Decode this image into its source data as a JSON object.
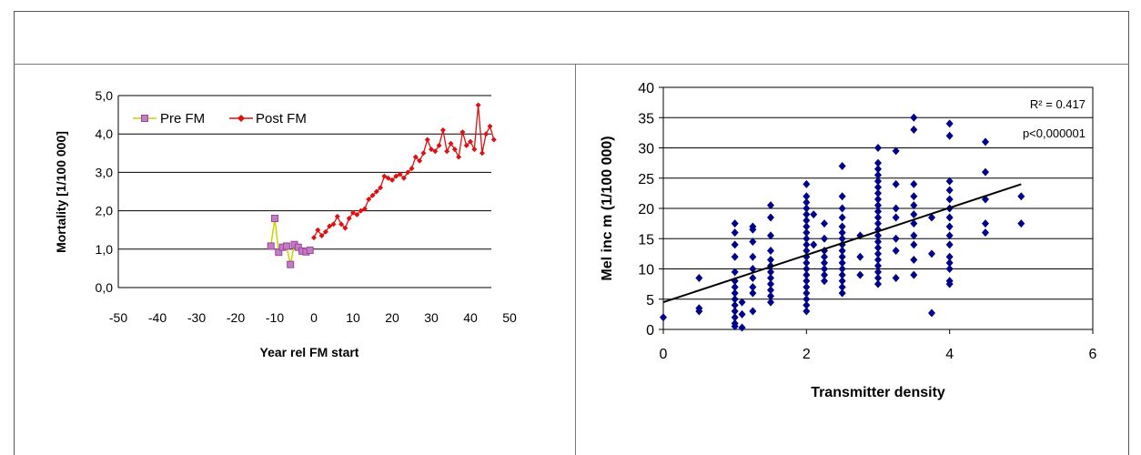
{
  "colors": {
    "pre_line": "#c8d400",
    "pre_marker": "#c080c0",
    "pre_marker_edge": "#a040a0",
    "post": "#dd1111",
    "scatter": "#00008b",
    "trend": "#000000",
    "grid": "#000000",
    "border": "#555555"
  },
  "chart_data": [
    {
      "type": "line",
      "xlabel": "Year rel FM start",
      "ylabel": "Mortality  [1/100 000]",
      "xlim": [
        -50,
        50
      ],
      "ylim": [
        0,
        5
      ],
      "x_ticks": [
        "-50",
        "-40",
        "-30",
        "-20",
        "-10",
        "0",
        "10",
        "20",
        "30",
        "40",
        "50"
      ],
      "y_ticks": [
        "0,0",
        "1,0",
        "2,0",
        "3,0",
        "4,0",
        "5,0"
      ],
      "grid": "horizontal",
      "legend": "top-left",
      "series": [
        {
          "name": "Pre FM",
          "x": [
            -11,
            -10,
            -9,
            -8,
            -7,
            -6,
            -5,
            -4,
            -3,
            -2,
            -1
          ],
          "y": [
            1.08,
            1.8,
            0.92,
            1.05,
            1.08,
            0.6,
            1.12,
            1.05,
            0.95,
            0.93,
            0.97
          ]
        },
        {
          "name": "Post FM",
          "x": [
            0,
            1,
            2,
            3,
            4,
            5,
            6,
            7,
            8,
            9,
            10,
            11,
            12,
            13,
            14,
            15,
            16,
            17,
            18,
            19,
            20,
            21,
            22,
            23,
            24,
            25,
            26,
            27,
            28,
            29,
            30,
            31,
            32,
            33,
            34,
            35,
            36,
            37,
            38,
            39,
            40,
            41,
            42,
            43,
            44,
            45,
            46
          ],
          "y": [
            1.3,
            1.5,
            1.35,
            1.45,
            1.6,
            1.65,
            1.85,
            1.65,
            1.55,
            1.8,
            1.95,
            1.9,
            2.0,
            2.05,
            2.3,
            2.4,
            2.5,
            2.6,
            2.9,
            2.85,
            2.8,
            2.9,
            2.95,
            2.85,
            3.0,
            3.1,
            3.4,
            3.3,
            3.5,
            3.85,
            3.6,
            3.55,
            3.7,
            4.1,
            3.55,
            3.75,
            3.6,
            3.4,
            4.05,
            3.7,
            3.8,
            3.6,
            4.75,
            3.5,
            4.0,
            4.2,
            3.85
          ]
        }
      ]
    },
    {
      "type": "scatter",
      "xlabel": "Transmitter density",
      "ylabel": "Mel inc m (1/100 000)",
      "xlim": [
        0,
        6
      ],
      "ylim": [
        0,
        40
      ],
      "x_ticks": [
        "0",
        "2",
        "4",
        "6"
      ],
      "y_ticks": [
        "0",
        "5",
        "10",
        "15",
        "20",
        "25",
        "30",
        "35",
        "40"
      ],
      "grid": "horizontal",
      "annotations": [
        "R² = 0.417",
        "p<0,000001"
      ],
      "trendline": {
        "x": [
          0,
          5
        ],
        "y": [
          4.5,
          24.0
        ]
      },
      "points": [
        [
          0,
          2
        ],
        [
          0.5,
          3.5
        ],
        [
          0.5,
          8.5
        ],
        [
          0.5,
          3
        ],
        [
          1,
          1
        ],
        [
          1,
          2
        ],
        [
          1,
          3
        ],
        [
          1,
          4
        ],
        [
          1,
          5
        ],
        [
          1,
          6
        ],
        [
          1,
          7
        ],
        [
          1,
          9.5
        ],
        [
          1,
          12
        ],
        [
          1,
          14
        ],
        [
          1,
          16
        ],
        [
          1,
          17.5
        ],
        [
          1,
          0.5
        ],
        [
          1,
          8
        ],
        [
          1.1,
          0.3
        ],
        [
          1.1,
          2.5
        ],
        [
          1.1,
          4.5
        ],
        [
          1.25,
          6
        ],
        [
          1.25,
          7
        ],
        [
          1.25,
          8.5
        ],
        [
          1.25,
          10
        ],
        [
          1.25,
          12
        ],
        [
          1.25,
          14.5
        ],
        [
          1.25,
          16.5
        ],
        [
          1.25,
          17
        ],
        [
          1.25,
          3
        ],
        [
          1.5,
          4.5
        ],
        [
          1.5,
          5.5
        ],
        [
          1.5,
          6.5
        ],
        [
          1.5,
          7.5
        ],
        [
          1.5,
          8.5
        ],
        [
          1.5,
          9.5
        ],
        [
          1.5,
          10.5
        ],
        [
          1.5,
          11.5
        ],
        [
          1.5,
          13
        ],
        [
          1.5,
          15.5
        ],
        [
          1.5,
          18.5
        ],
        [
          1.5,
          20.5
        ],
        [
          2,
          3
        ],
        [
          2,
          4
        ],
        [
          2,
          5
        ],
        [
          2,
          6
        ],
        [
          2,
          7
        ],
        [
          2,
          8
        ],
        [
          2,
          9
        ],
        [
          2,
          10
        ],
        [
          2,
          11
        ],
        [
          2,
          12
        ],
        [
          2,
          13
        ],
        [
          2,
          14
        ],
        [
          2,
          15
        ],
        [
          2,
          16
        ],
        [
          2,
          17
        ],
        [
          2,
          18
        ],
        [
          2,
          19
        ],
        [
          2,
          20
        ],
        [
          2,
          21
        ],
        [
          2,
          22
        ],
        [
          2,
          24
        ],
        [
          2.1,
          19
        ],
        [
          2.1,
          14
        ],
        [
          2.25,
          8
        ],
        [
          2.25,
          9
        ],
        [
          2.25,
          10
        ],
        [
          2.25,
          11
        ],
        [
          2.25,
          12
        ],
        [
          2.25,
          13
        ],
        [
          2.25,
          15
        ],
        [
          2.25,
          17.5
        ],
        [
          2.5,
          6
        ],
        [
          2.5,
          7
        ],
        [
          2.5,
          8
        ],
        [
          2.5,
          9
        ],
        [
          2.5,
          10
        ],
        [
          2.5,
          11
        ],
        [
          2.5,
          12
        ],
        [
          2.5,
          13
        ],
        [
          2.5,
          14
        ],
        [
          2.5,
          15
        ],
        [
          2.5,
          16
        ],
        [
          2.5,
          17
        ],
        [
          2.5,
          18.5
        ],
        [
          2.5,
          20
        ],
        [
          2.5,
          22
        ],
        [
          2.5,
          27
        ],
        [
          2.75,
          9
        ],
        [
          2.75,
          12
        ],
        [
          2.75,
          15.5
        ],
        [
          3,
          7.5
        ],
        [
          3,
          8.5
        ],
        [
          3,
          9.5
        ],
        [
          3,
          10.5
        ],
        [
          3,
          11.5
        ],
        [
          3,
          12.5
        ],
        [
          3,
          13.5
        ],
        [
          3,
          14.5
        ],
        [
          3,
          15.5
        ],
        [
          3,
          16.5
        ],
        [
          3,
          17.5
        ],
        [
          3,
          18.5
        ],
        [
          3,
          19.5
        ],
        [
          3,
          20.5
        ],
        [
          3,
          21.5
        ],
        [
          3,
          22.5
        ],
        [
          3,
          23.5
        ],
        [
          3,
          24.5
        ],
        [
          3,
          25.5
        ],
        [
          3,
          26.5
        ],
        [
          3,
          27.5
        ],
        [
          3,
          30
        ],
        [
          3.25,
          8.5
        ],
        [
          3.25,
          13
        ],
        [
          3.25,
          15
        ],
        [
          3.25,
          18.5
        ],
        [
          3.25,
          20
        ],
        [
          3.25,
          24
        ],
        [
          3.25,
          29.5
        ],
        [
          3.5,
          9
        ],
        [
          3.5,
          11.5
        ],
        [
          3.5,
          14
        ],
        [
          3.5,
          15.5
        ],
        [
          3.5,
          17.5
        ],
        [
          3.5,
          19
        ],
        [
          3.5,
          20.5
        ],
        [
          3.5,
          22
        ],
        [
          3.5,
          24
        ],
        [
          3.5,
          33
        ],
        [
          3.5,
          35
        ],
        [
          3.75,
          2.7
        ],
        [
          3.75,
          12.5
        ],
        [
          3.75,
          18.5
        ],
        [
          4,
          7.5
        ],
        [
          4,
          8
        ],
        [
          4,
          10
        ],
        [
          4,
          11
        ],
        [
          4,
          12
        ],
        [
          4,
          14
        ],
        [
          4,
          15.5
        ],
        [
          4,
          17
        ],
        [
          4,
          18.5
        ],
        [
          4,
          20
        ],
        [
          4,
          21.5
        ],
        [
          4,
          23
        ],
        [
          4,
          24.5
        ],
        [
          4,
          32
        ],
        [
          4,
          34
        ],
        [
          4.5,
          16
        ],
        [
          4.5,
          17.5
        ],
        [
          4.5,
          21.5
        ],
        [
          4.5,
          26
        ],
        [
          4.5,
          31
        ],
        [
          5,
          17.5
        ],
        [
          5,
          22
        ]
      ]
    }
  ]
}
